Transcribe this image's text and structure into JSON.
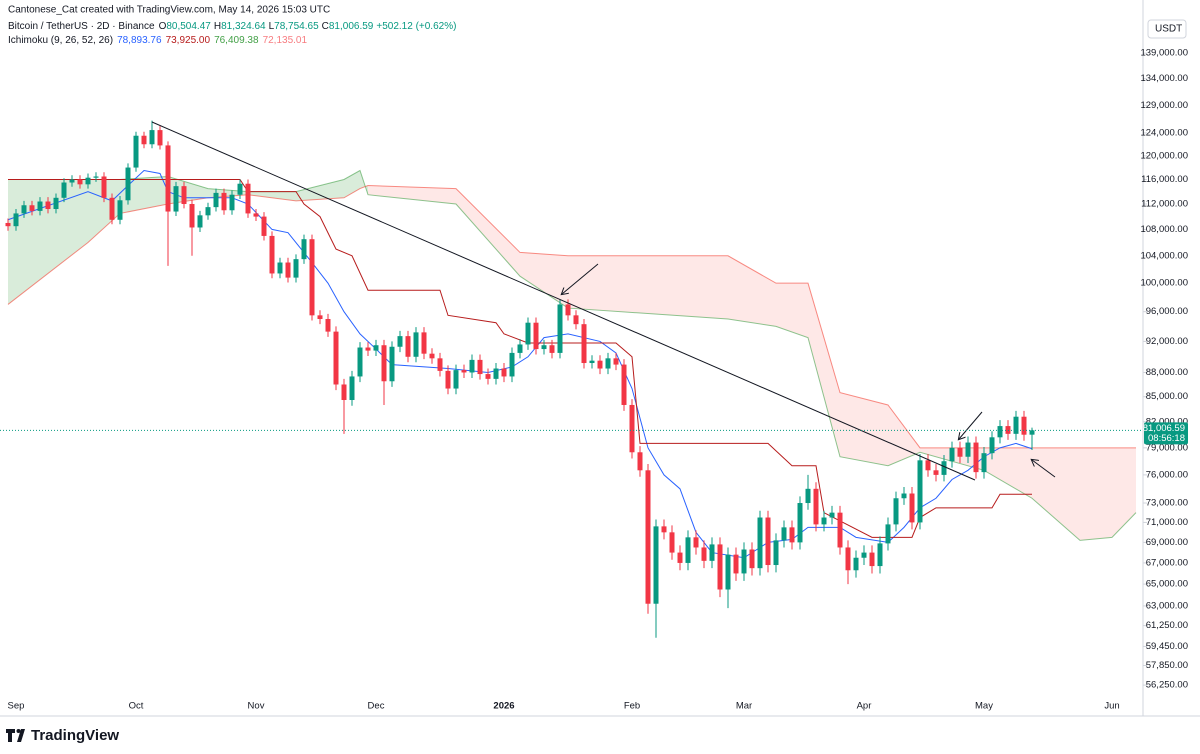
{
  "header": {
    "credit": "Cantonese_Cat created with TradingView.com, May 14, 2026 15:03 UTC"
  },
  "footer": {
    "brand": "TradingView"
  },
  "chart_data": {
    "type": "candlestick",
    "title": "Bitcoin / TetherUS · 2D · Binance",
    "ohlc": [
      {
        "key": "O",
        "text": "80,504.47"
      },
      {
        "key": "H",
        "text": "81,324.64"
      },
      {
        "key": "L",
        "text": "78,754.65"
      },
      {
        "key": "C",
        "text": "81,006.59"
      },
      {
        "key": "",
        "text": "+502.12 (+0.62%)"
      }
    ],
    "currency": "USDT",
    "last_price": {
      "value": 81006.59,
      "label": "81,006.59"
    },
    "countdown": "08:56:18",
    "up_color": "#089981",
    "down_color": "#f23645",
    "log_scale": true,
    "grid": false,
    "ylim": [
      55300,
      146800
    ],
    "yticks": [
      {
        "value": 139000,
        "label": "139,000.00"
      },
      {
        "value": 134000,
        "label": "134,000.00"
      },
      {
        "value": 129000,
        "label": "129,000.00"
      },
      {
        "value": 124000,
        "label": "124,000.00"
      },
      {
        "value": 120000,
        "label": "120,000.00"
      },
      {
        "value": 116000,
        "label": "116,000.00"
      },
      {
        "value": 112000,
        "label": "112,000.00"
      },
      {
        "value": 108000,
        "label": "108,000.00"
      },
      {
        "value": 104000,
        "label": "104,000.00"
      },
      {
        "value": 100000,
        "label": "100,000.00"
      },
      {
        "value": 96000,
        "label": "96,000.00"
      },
      {
        "value": 92000,
        "label": "92,000.00"
      },
      {
        "value": 88000,
        "label": "88,000.00"
      },
      {
        "value": 85000,
        "label": "85,000.00"
      },
      {
        "value": 82000,
        "label": "82,000.00"
      },
      {
        "value": 79000,
        "label": "79,000.00"
      },
      {
        "value": 76000,
        "label": "76,000.00"
      },
      {
        "value": 73000,
        "label": "73,000.00"
      },
      {
        "value": 71000,
        "label": "71,000.00"
      },
      {
        "value": 69000,
        "label": "69,000.00"
      },
      {
        "value": 67000,
        "label": "67,000.00"
      },
      {
        "value": 65000,
        "label": "65,000.00"
      },
      {
        "value": 63000,
        "label": "63,000.00"
      },
      {
        "value": 61250,
        "label": "61,250.00"
      },
      {
        "value": 59450,
        "label": "59,450.00"
      },
      {
        "value": 57850,
        "label": "57,850.00"
      },
      {
        "value": 56250,
        "label": "56,250.00"
      }
    ],
    "categories": [
      null,
      "Sep",
      null,
      null,
      null,
      null,
      null,
      null,
      null,
      null,
      null,
      null,
      null,
      null,
      null,
      null,
      "Oct",
      null,
      null,
      null,
      null,
      null,
      null,
      null,
      null,
      null,
      null,
      null,
      null,
      null,
      null,
      "Nov",
      null,
      null,
      null,
      null,
      null,
      null,
      null,
      null,
      null,
      null,
      null,
      null,
      null,
      null,
      "Dec",
      null,
      null,
      null,
      null,
      null,
      null,
      null,
      null,
      null,
      null,
      null,
      null,
      null,
      null,
      null,
      "2026",
      null,
      null,
      null,
      null,
      null,
      null,
      null,
      null,
      null,
      null,
      null,
      null,
      null,
      null,
      null,
      "Feb",
      null,
      null,
      null,
      null,
      null,
      null,
      null,
      null,
      null,
      null,
      null,
      null,
      null,
      "Mar",
      null,
      null,
      null,
      null,
      null,
      null,
      null,
      null,
      null,
      null,
      null,
      null,
      null,
      null,
      "Apr",
      null,
      null,
      null,
      null,
      null,
      null,
      null,
      null,
      null,
      null,
      null,
      null,
      null,
      null,
      "May",
      null,
      null,
      null,
      null,
      null,
      null,
      null,
      null,
      null,
      null,
      null,
      null,
      null,
      null,
      null,
      "Jun",
      null,
      null,
      null
    ],
    "open": [
      109000,
      108500,
      110500,
      111800,
      110900,
      112400,
      111200,
      113000,
      115500,
      116000,
      115200,
      116300,
      116500,
      113000,
      109500,
      112600,
      118000,
      123500,
      122000,
      124500,
      121800,
      110800,
      114900,
      112000,
      108300,
      110200,
      111500,
      113800,
      111000,
      113500,
      115300,
      110500,
      110000,
      107000,
      101400,
      103000,
      100800,
      103500,
      106500,
      95500,
      95000,
      93300,
      86500,
      84600,
      87500,
      91200,
      90800,
      91500,
      86900,
      91300,
      92700,
      90000,
      93200,
      90400,
      89800,
      88200,
      86000,
      88300,
      88000,
      89600,
      87800,
      87200,
      88500,
      87500,
      90500,
      91600,
      94500,
      91000,
      91500,
      90500,
      97000,
      95500,
      94300,
      89200,
      89500,
      88500,
      89800,
      89000,
      84000,
      78500,
      76500,
      63200,
      70600,
      70000,
      68000,
      67000,
      69500,
      68500,
      67200,
      68800,
      64500,
      67800,
      66000,
      68300,
      66500,
      71500,
      66800,
      69200,
      70500,
      69000,
      73000,
      74500,
      70800,
      71500,
      72000,
      68500,
      66300,
      67500,
      68000,
      66700,
      68900,
      70800,
      73500,
      74000,
      71000,
      77600,
      76500,
      76000,
      77500,
      79000,
      78000,
      79600,
      76300,
      78400,
      80200,
      81500,
      80600,
      82600,
      80504.47,
      null,
      null,
      null,
      null,
      null,
      null,
      null,
      null,
      null,
      null,
      null,
      null,
      null
    ],
    "high": [
      109700,
      111200,
      112500,
      112500,
      113100,
      113100,
      113700,
      116200,
      116700,
      116700,
      117000,
      117200,
      117200,
      113700,
      113300,
      118700,
      124200,
      124200,
      126200,
      125200,
      122500,
      115600,
      115600,
      112700,
      110900,
      112200,
      114500,
      114500,
      114200,
      116000,
      116000,
      111200,
      110700,
      107700,
      103700,
      103700,
      104200,
      107200,
      107200,
      96200,
      95700,
      94000,
      87200,
      88200,
      91900,
      91900,
      92200,
      92200,
      92000,
      93400,
      93400,
      93900,
      93900,
      91100,
      90500,
      88900,
      89000,
      89000,
      90300,
      90300,
      88500,
      89200,
      89200,
      91200,
      92300,
      95200,
      95200,
      92200,
      92200,
      97700,
      97700,
      96200,
      95000,
      90200,
      90200,
      90500,
      90500,
      89700,
      84700,
      79200,
      77200,
      71300,
      71300,
      70700,
      68700,
      70200,
      70200,
      69200,
      69500,
      69500,
      68500,
      68500,
      69000,
      69000,
      72200,
      72200,
      69900,
      71200,
      71200,
      73700,
      76000,
      75200,
      72200,
      72700,
      72700,
      69200,
      68200,
      68700,
      68700,
      69600,
      71500,
      74200,
      74700,
      74700,
      78300,
      78300,
      77200,
      78200,
      79700,
      79700,
      80300,
      80300,
      79100,
      80900,
      82200,
      82200,
      83300,
      83300,
      81324.64,
      null,
      null,
      null,
      null,
      null,
      null,
      null,
      null,
      null,
      null,
      null,
      null,
      null
    ],
    "low": [
      107800,
      107800,
      109800,
      110200,
      110200,
      110500,
      110500,
      112300,
      114800,
      114500,
      114500,
      115600,
      112300,
      108800,
      108800,
      111900,
      117300,
      121300,
      121300,
      121100,
      102500,
      110100,
      111300,
      104000,
      107600,
      109500,
      110800,
      110300,
      110300,
      112800,
      109800,
      109300,
      106300,
      100700,
      100700,
      100100,
      100100,
      102800,
      94800,
      94300,
      92600,
      85800,
      80600,
      83900,
      86800,
      90100,
      90100,
      84000,
      86200,
      90600,
      89300,
      89300,
      89700,
      89100,
      87500,
      85300,
      85300,
      87300,
      87300,
      87100,
      86500,
      86500,
      86800,
      86800,
      89800,
      90900,
      90300,
      90300,
      89800,
      89800,
      94800,
      93600,
      88500,
      88500,
      87800,
      87800,
      88300,
      83300,
      77800,
      75800,
      62300,
      60200,
      69300,
      67300,
      66300,
      66300,
      67800,
      66500,
      66500,
      63800,
      62800,
      65300,
      65300,
      65800,
      65800,
      66100,
      66100,
      68500,
      68300,
      68300,
      72300,
      70100,
      70100,
      70800,
      67800,
      65000,
      65600,
      66800,
      66000,
      66000,
      68200,
      70100,
      72800,
      70300,
      70300,
      75800,
      75300,
      75300,
      76800,
      77300,
      77300,
      75600,
      75600,
      77700,
      79500,
      79900,
      79900,
      79800,
      78754.65,
      null,
      null,
      null,
      null,
      null,
      null,
      null,
      null,
      null,
      null,
      null,
      null,
      null
    ],
    "close": [
      108500,
      110500,
      111800,
      110900,
      112400,
      111200,
      113000,
      115500,
      116000,
      115200,
      116300,
      116500,
      113000,
      109500,
      112600,
      118000,
      123500,
      122000,
      124500,
      121800,
      110800,
      114900,
      112000,
      108300,
      110200,
      111500,
      113800,
      111000,
      113500,
      115300,
      110500,
      110000,
      107000,
      101400,
      103000,
      100800,
      103500,
      106500,
      95500,
      95000,
      93300,
      86500,
      84600,
      87500,
      91200,
      90800,
      91500,
      86900,
      91300,
      92700,
      90000,
      93200,
      90400,
      89800,
      88200,
      86000,
      88300,
      88000,
      89600,
      87800,
      87200,
      88500,
      87500,
      90500,
      91600,
      94500,
      91000,
      91500,
      90500,
      97000,
      95500,
      94300,
      89200,
      89500,
      88500,
      89800,
      89000,
      84000,
      78500,
      76500,
      63200,
      70600,
      70000,
      68000,
      67000,
      69500,
      68500,
      67200,
      68800,
      64500,
      67800,
      66000,
      68300,
      66500,
      71500,
      66800,
      69200,
      70500,
      69000,
      73000,
      74500,
      70800,
      71500,
      72000,
      68500,
      66300,
      67500,
      68000,
      66700,
      68900,
      70800,
      73500,
      74000,
      71000,
      77600,
      76500,
      76000,
      77500,
      79000,
      78000,
      79600,
      76300,
      78400,
      80200,
      81500,
      80600,
      82600,
      80500,
      81006.59,
      null,
      null,
      null,
      null,
      null,
      null,
      null,
      null,
      null,
      null,
      null,
      null,
      null
    ],
    "indicator": {
      "title": "Ichimoku (9, 26, 52, 26)",
      "readouts": [
        {
          "text": "78,893.76",
          "color": "#2962ff"
        },
        {
          "text": "73,925.00",
          "color": "#b71c1c"
        },
        {
          "text": "76,409.38",
          "color": "#43a047"
        },
        {
          "text": "72,135.01",
          "color": "#f77c80"
        }
      ],
      "lines": [
        {
          "color": "#2962ff",
          "x": [
            0,
            10,
            13,
            15,
            17,
            19,
            20,
            22,
            28,
            30,
            33,
            35,
            38,
            40,
            42,
            44,
            46,
            48,
            55,
            60,
            63,
            65,
            67,
            70,
            74,
            76,
            78,
            80,
            82,
            84,
            86,
            88,
            92,
            95,
            98,
            100,
            104,
            106,
            110,
            112,
            114,
            116,
            118,
            120,
            122,
            124,
            126,
            128
          ],
          "values": [
            109500,
            114000,
            112500,
            115000,
            117500,
            117000,
            114000,
            113000,
            113000,
            112000,
            108000,
            107500,
            103000,
            100000,
            96000,
            93000,
            91000,
            89000,
            88500,
            88000,
            88700,
            90000,
            92500,
            93000,
            92000,
            90500,
            86000,
            79000,
            76000,
            74500,
            70000,
            68000,
            67500,
            69000,
            69300,
            70500,
            70500,
            69500,
            69000,
            70500,
            72500,
            73500,
            75500,
            76500,
            78000,
            79000,
            79500,
            78893.76
          ]
        },
        {
          "color": "#b71c1c",
          "x": [
            0,
            29,
            30,
            36,
            37,
            39,
            41,
            43,
            45,
            54,
            55,
            61,
            62,
            65,
            76,
            78,
            79,
            95,
            98,
            101,
            102,
            108,
            113,
            114,
            116,
            123,
            124,
            128
          ],
          "values": [
            116000,
            116000,
            114000,
            114000,
            112000,
            110000,
            105000,
            104000,
            99000,
            99000,
            95500,
            94500,
            93000,
            91800,
            91800,
            90000,
            79500,
            79500,
            77000,
            77000,
            72000,
            69500,
            69500,
            71500,
            72500,
            72500,
            73925,
            73925
          ]
        }
      ],
      "cloud": {
        "up_color": "#43a047",
        "down_color": "#f44336",
        "x": [
          0,
          10,
          14,
          20,
          25,
          30,
          36,
          42,
          44,
          45,
          56,
          64,
          70,
          90,
          96,
          100,
          104,
          110,
          114,
          122,
          128,
          134,
          138,
          141
        ],
        "span_a": [
          116000,
          116000,
          116000,
          116500,
          114500,
          114000,
          114000,
          116000,
          117500,
          113500,
          112000,
          101000,
          96500,
          95000,
          94000,
          92500,
          78000,
          77000,
          78500,
          76500,
          73500,
          69200,
          69500,
          72000
        ],
        "span_b": [
          97000,
          106000,
          110500,
          112000,
          113000,
          113500,
          112500,
          113000,
          114500,
          115000,
          114500,
          104500,
          104000,
          104000,
          100000,
          100000,
          85500,
          84000,
          79000,
          79000,
          79000,
          79000,
          79000,
          79000
        ]
      }
    }
  }
}
